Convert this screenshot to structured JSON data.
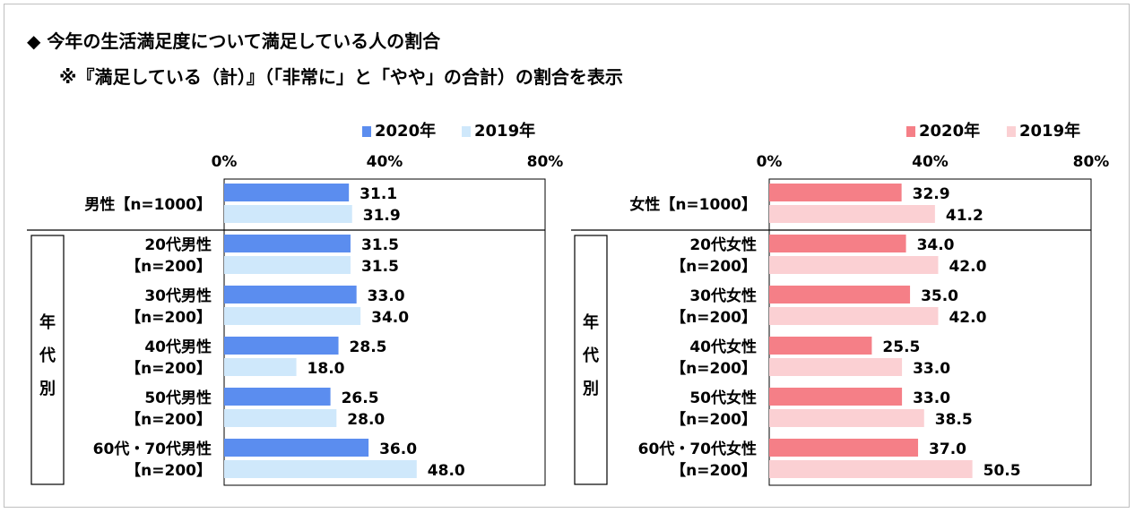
{
  "title": "◆ 今年の生活満足度について満足している人の割合",
  "note": "※『満足している（計）』（「非常に」と「やや」の合計）の割合を表示",
  "chart_data": [
    {
      "type": "bar",
      "orientation": "horizontal",
      "xlim": [
        0,
        80
      ],
      "xticks": [
        "0%",
        "40%",
        "80%"
      ],
      "colors": {
        "2020年": "#5b8def",
        "2019年": "#cfe8fb"
      },
      "series": [
        {
          "name": "2020年",
          "values": [
            31.1,
            31.5,
            33.0,
            28.5,
            26.5,
            36.0
          ]
        },
        {
          "name": "2019年",
          "values": [
            31.9,
            31.5,
            34.0,
            18.0,
            28.0,
            48.0
          ]
        }
      ],
      "categories": [
        {
          "line1": "男性【n=1000】",
          "line2": ""
        },
        {
          "line1": "20代男性",
          "line2": "【n=200】"
        },
        {
          "line1": "30代男性",
          "line2": "【n=200】"
        },
        {
          "line1": "40代男性",
          "line2": "【n=200】"
        },
        {
          "line1": "50代男性",
          "line2": "【n=200】"
        },
        {
          "line1": "60代・70代男性",
          "line2": "【n=200】"
        }
      ],
      "group_label": [
        "年",
        "代",
        "別"
      ]
    },
    {
      "type": "bar",
      "orientation": "horizontal",
      "xlim": [
        0,
        80
      ],
      "xticks": [
        "0%",
        "40%",
        "80%"
      ],
      "colors": {
        "2020年": "#f57f87",
        "2019年": "#fbd0d3"
      },
      "series": [
        {
          "name": "2020年",
          "values": [
            32.9,
            34.0,
            35.0,
            25.5,
            33.0,
            37.0
          ]
        },
        {
          "name": "2019年",
          "values": [
            41.2,
            42.0,
            42.0,
            33.0,
            38.5,
            50.5
          ]
        }
      ],
      "categories": [
        {
          "line1": "女性【n=1000】",
          "line2": ""
        },
        {
          "line1": "20代女性",
          "line2": "【n=200】"
        },
        {
          "line1": "30代女性",
          "line2": "【n=200】"
        },
        {
          "line1": "40代女性",
          "line2": "【n=200】"
        },
        {
          "line1": "50代女性",
          "line2": "【n=200】"
        },
        {
          "line1": "60代・70代女性",
          "line2": "【n=200】"
        }
      ],
      "group_label": [
        "年",
        "代",
        "別"
      ]
    }
  ]
}
